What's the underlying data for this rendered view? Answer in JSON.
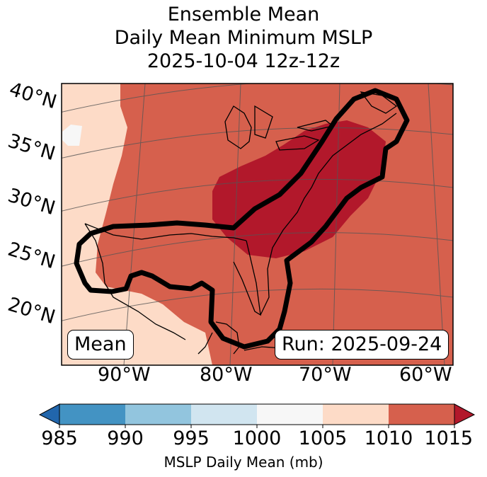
{
  "title": {
    "line1": "Ensemble Mean",
    "line2": "Daily Mean Minimum MSLP",
    "line3": "2025-10-04 12z-12z"
  },
  "map": {
    "lat_labels": [
      "40°N",
      "35°N",
      "30°N",
      "25°N",
      "20°N"
    ],
    "lon_labels": [
      "90°W",
      "80°W",
      "70°W",
      "60°W"
    ],
    "mean_label": "Mean",
    "run_label": "Run: 2025-09-24"
  },
  "colorbar": {
    "ticks": [
      "985",
      "990",
      "995",
      "1000",
      "1005",
      "1010",
      "1015"
    ],
    "label": "MSLP Daily Mean (mb)",
    "colors": {
      "below": "#2166ac",
      "985_990": "#4393c3",
      "990_995": "#92c5de",
      "995_1000": "#d1e5f0",
      "1000_1005": "#f7f7f7",
      "1005_1010": "#fddbc7",
      "1010_1015": "#d6604d",
      "above": "#b2182b"
    }
  }
}
